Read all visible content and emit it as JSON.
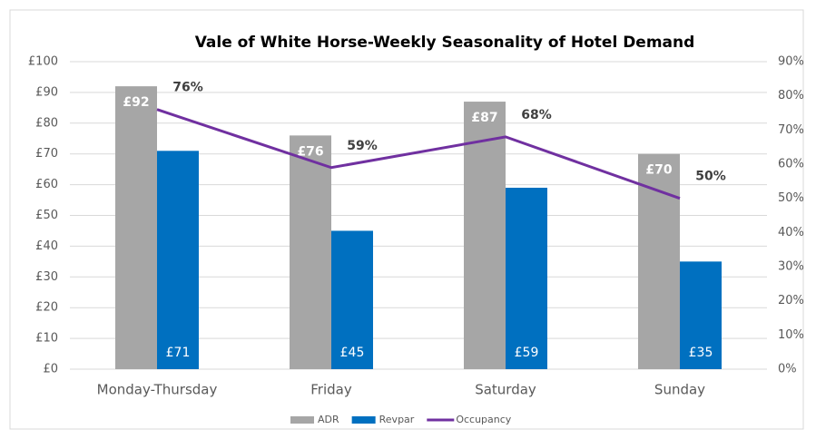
{
  "chart_data": {
    "type": "bar",
    "title": "Vale of White Horse-Weekly Seasonality of Hotel Demand",
    "categories": [
      "Monday-Thursday",
      "Friday",
      "Saturday",
      "Sunday"
    ],
    "series": [
      {
        "name": "ADR",
        "color": "#a6a6a6",
        "values": [
          92,
          76,
          87,
          70
        ],
        "value_labels": [
          "£92",
          "£76",
          "£87",
          "£70"
        ]
      },
      {
        "name": "Revpar",
        "color": "#0070c0",
        "values": [
          71,
          45,
          59,
          35
        ],
        "value_labels": [
          "£71",
          "£45",
          "£59",
          "£35"
        ]
      },
      {
        "name": "Occupancy",
        "color": "#7030a0",
        "type": "line",
        "axis": "y2",
        "values": [
          76,
          59,
          68,
          50
        ],
        "value_labels": [
          "76%",
          "59%",
          "68%",
          "50%"
        ]
      }
    ],
    "ylim": [
      0,
      100
    ],
    "yticks": [
      {
        "value": 0,
        "label": "£0"
      },
      {
        "value": 10,
        "label": "£10"
      },
      {
        "value": 20,
        "label": "£20"
      },
      {
        "value": 30,
        "label": "£30"
      },
      {
        "value": 40,
        "label": "£40"
      },
      {
        "value": 50,
        "label": "£50"
      },
      {
        "value": 60,
        "label": "£60"
      },
      {
        "value": 70,
        "label": "£70"
      },
      {
        "value": 80,
        "label": "£80"
      },
      {
        "value": 90,
        "label": "£90"
      },
      {
        "value": 100,
        "label": "£100"
      }
    ],
    "y2lim": [
      0,
      90
    ],
    "y2ticks": [
      {
        "value": 0,
        "label": "0%"
      },
      {
        "value": 10,
        "label": "10%"
      },
      {
        "value": 20,
        "label": "20%"
      },
      {
        "value": 30,
        "label": "30%"
      },
      {
        "value": 40,
        "label": "40%"
      },
      {
        "value": 50,
        "label": "50%"
      },
      {
        "value": 60,
        "label": "60%"
      },
      {
        "value": 70,
        "label": "70%"
      },
      {
        "value": 80,
        "label": "80%"
      },
      {
        "value": 90,
        "label": "90%"
      }
    ],
    "grid": true,
    "legend": "bottom"
  }
}
